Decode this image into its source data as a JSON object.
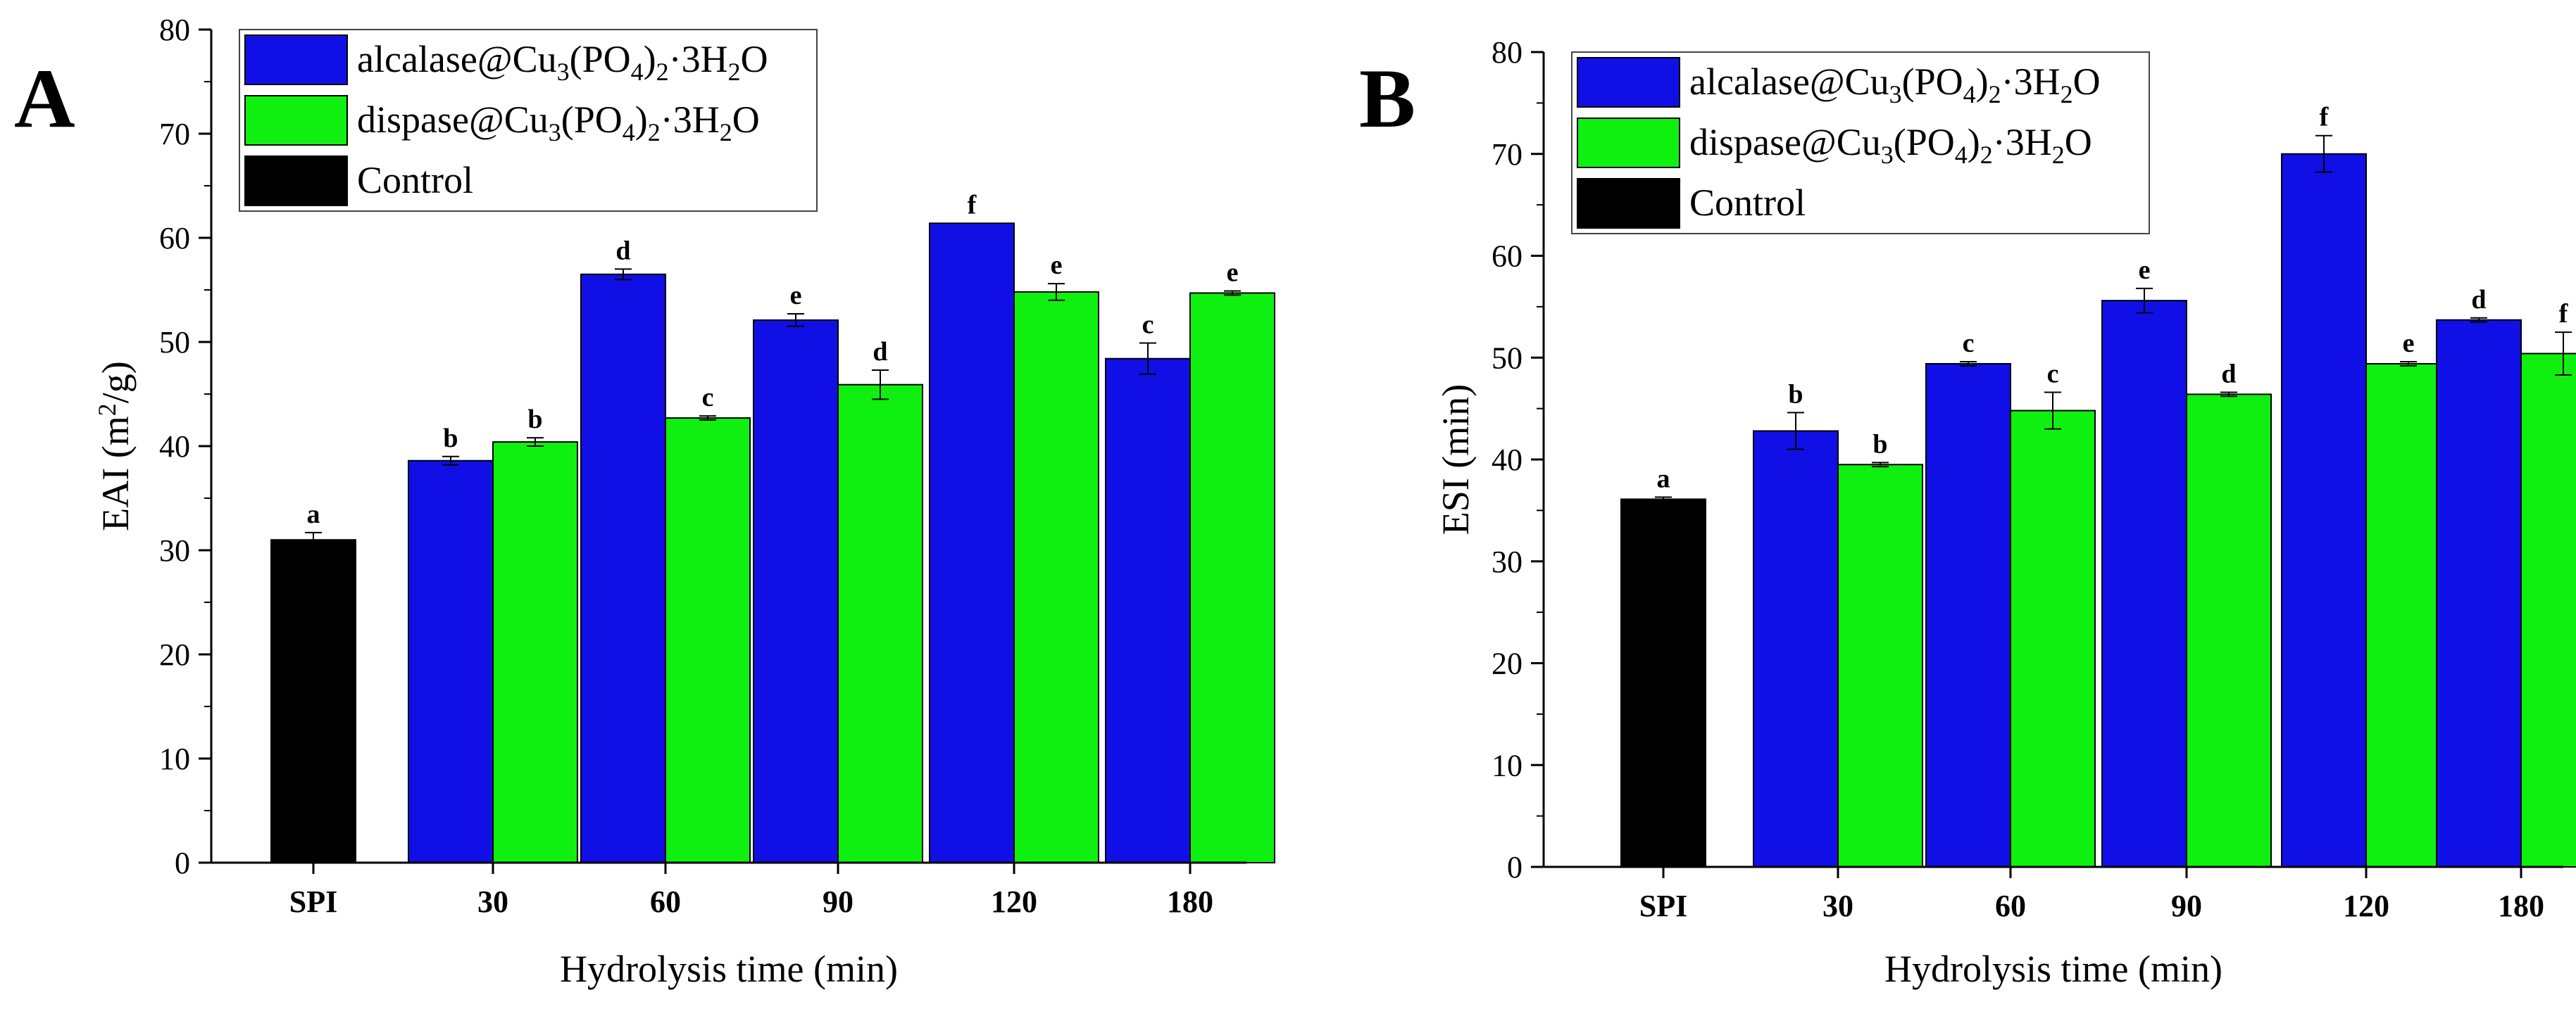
{
  "chart_data": [
    {
      "panel": "A",
      "type": "bar",
      "categories": [
        "SPI",
        "30",
        "60",
        "90",
        "120",
        "180"
      ],
      "series": [
        {
          "name": "alcalase@Cu3(PO4)2·3H2O",
          "color": "#1010e6",
          "values": [
            null,
            38.6,
            56.5,
            52.1,
            61.4,
            48.4
          ],
          "errors": [
            null,
            0.4,
            0.5,
            0.6,
            null,
            1.5
          ],
          "letters": [
            null,
            "b",
            "d",
            "e",
            "f",
            "c"
          ]
        },
        {
          "name": "dispase@Cu3(PO4)2·3H2O",
          "color": "#10f010",
          "values": [
            null,
            40.4,
            42.7,
            45.9,
            54.8,
            54.7
          ],
          "errors": [
            null,
            0.4,
            0.2,
            1.4,
            0.8,
            0.2
          ],
          "letters": [
            null,
            "b",
            "c",
            "d",
            "e",
            "e"
          ]
        },
        {
          "name": "Control",
          "color": "#000000",
          "values": [
            31.0,
            null,
            null,
            null,
            null,
            null
          ],
          "errors": [
            0.7,
            null,
            null,
            null,
            null,
            null
          ],
          "letters": [
            "a",
            null,
            null,
            null,
            null,
            null
          ]
        }
      ],
      "xlabel": "Hydrolysis time (min)",
      "ylabel_main": "EAI (m",
      "ylabel_sup": "2",
      "ylabel_tail": "/g)",
      "ylim": [
        0,
        80
      ],
      "yticks": [
        0,
        10,
        20,
        30,
        40,
        50,
        60,
        70,
        80
      ],
      "grid": false,
      "legend_position": "top-left"
    },
    {
      "panel": "B",
      "type": "bar",
      "categories": [
        "SPI",
        "30",
        "60",
        "90",
        "120",
        "180"
      ],
      "series": [
        {
          "name": "alcalase@Cu3(PO4)2·3H2O",
          "color": "#1010e6",
          "values": [
            null,
            42.8,
            49.4,
            55.6,
            70.0,
            53.7
          ],
          "errors": [
            null,
            1.8,
            0.2,
            1.2,
            1.8,
            0.2
          ],
          "letters": [
            null,
            "b",
            "c",
            "e",
            "f",
            "d"
          ]
        },
        {
          "name": "dispase@Cu3(PO4)2·3H2O",
          "color": "#10f010",
          "values": [
            null,
            39.5,
            44.8,
            46.4,
            49.4,
            50.4
          ],
          "errors": [
            null,
            0.2,
            1.8,
            0.2,
            0.2,
            2.1
          ],
          "letters": [
            null,
            "b",
            "c",
            "d",
            "e",
            "f"
          ]
        },
        {
          "name": "Control",
          "color": "#000000",
          "values": [
            36.1,
            null,
            null,
            null,
            null,
            null
          ],
          "errors": [
            0.2,
            null,
            null,
            null,
            null,
            null
          ],
          "letters": [
            "a",
            null,
            null,
            null,
            null,
            null
          ]
        }
      ],
      "xlabel": "Hydrolysis time (min)",
      "ylabel_main": "ESI (min)",
      "ylabel_sup": "",
      "ylabel_tail": "",
      "ylim": [
        0,
        80
      ],
      "yticks": [
        0,
        10,
        20,
        30,
        40,
        50,
        60,
        70,
        80
      ],
      "grid": false,
      "legend_position": "top-left"
    }
  ],
  "legend": {
    "alcalase": {
      "pre": "alcalase@Cu",
      "s1": "3",
      "mid": "(PO",
      "s2": "4",
      "mid2": ")",
      "s3": "2",
      "tail": "·3H",
      "s4": "2",
      "end": "O"
    },
    "dispase": {
      "pre": "dispase@Cu",
      "s1": "3",
      "mid": "(PO",
      "s2": "4",
      "mid2": ")",
      "s3": "2",
      "tail": "·3H",
      "s4": "2",
      "end": "O"
    },
    "control": "Control"
  }
}
